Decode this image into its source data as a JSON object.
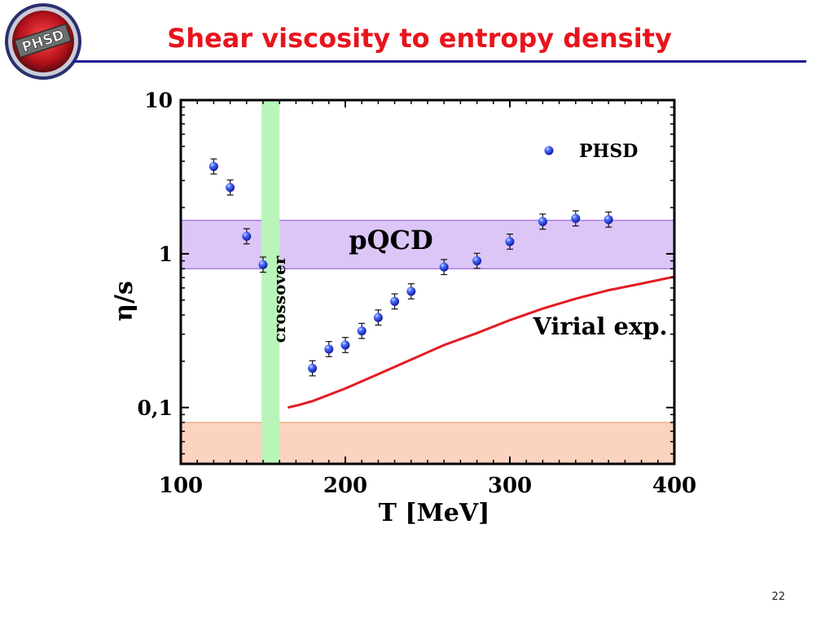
{
  "slide": {
    "title": "Shear viscosity to entropy density",
    "page_number": "22",
    "logo_text": "PHSD"
  },
  "colors": {
    "title": "#e8141d",
    "rule": "#1a1a8c",
    "points": "#1f2fd6",
    "virial": "#e31b23",
    "pqcd_band": "#dcc6f8",
    "crossover_band": "#b9f5b9",
    "lower_band": "#fcd3c0"
  },
  "chart_data": {
    "type": "scatter",
    "xlabel": "T [MeV]",
    "ylabel": "η/s",
    "xlim": [
      100,
      400
    ],
    "ylim": [
      0.043,
      10
    ],
    "yscale": "log",
    "x_ticks": [
      {
        "value": 100,
        "label": "100"
      },
      {
        "value": 200,
        "label": "200"
      },
      {
        "value": 300,
        "label": "300"
      },
      {
        "value": 400,
        "label": "400"
      }
    ],
    "y_ticks": [
      {
        "value": 10,
        "label": "10"
      },
      {
        "value": 1,
        "label": "1"
      },
      {
        "value": 0.1,
        "label": "0,1"
      }
    ],
    "legend": {
      "position": "top-right",
      "label": "PHSD"
    },
    "series": [
      {
        "name": "PHSD",
        "type": "scatter",
        "x": [
          120,
          130,
          140,
          150,
          180,
          190,
          200,
          210,
          220,
          230,
          240,
          260,
          280,
          300,
          320,
          340,
          360
        ],
        "y": [
          3.7,
          2.7,
          1.3,
          0.85,
          0.18,
          0.24,
          0.255,
          0.315,
          0.385,
          0.49,
          0.57,
          0.82,
          0.9,
          1.2,
          1.62,
          1.7,
          1.67
        ]
      },
      {
        "name": "Virial exp.",
        "type": "line",
        "x": [
          165,
          172,
          180,
          200,
          220,
          240,
          260,
          280,
          300,
          320,
          340,
          360,
          380,
          400
        ],
        "y": [
          0.1,
          0.104,
          0.11,
          0.133,
          0.165,
          0.205,
          0.255,
          0.305,
          0.37,
          0.44,
          0.51,
          0.58,
          0.64,
          0.71
        ]
      }
    ],
    "bands": [
      {
        "label": "pQCD",
        "axis": "y",
        "from": 0.8,
        "to": 1.65
      },
      {
        "label": "crossover",
        "axis": "x",
        "from": 155,
        "to": 165
      },
      {
        "label": "",
        "axis": "y",
        "from": 0.043,
        "to": 0.08
      }
    ],
    "annotations": [
      "pQCD",
      "crossover",
      "Virial exp."
    ]
  }
}
